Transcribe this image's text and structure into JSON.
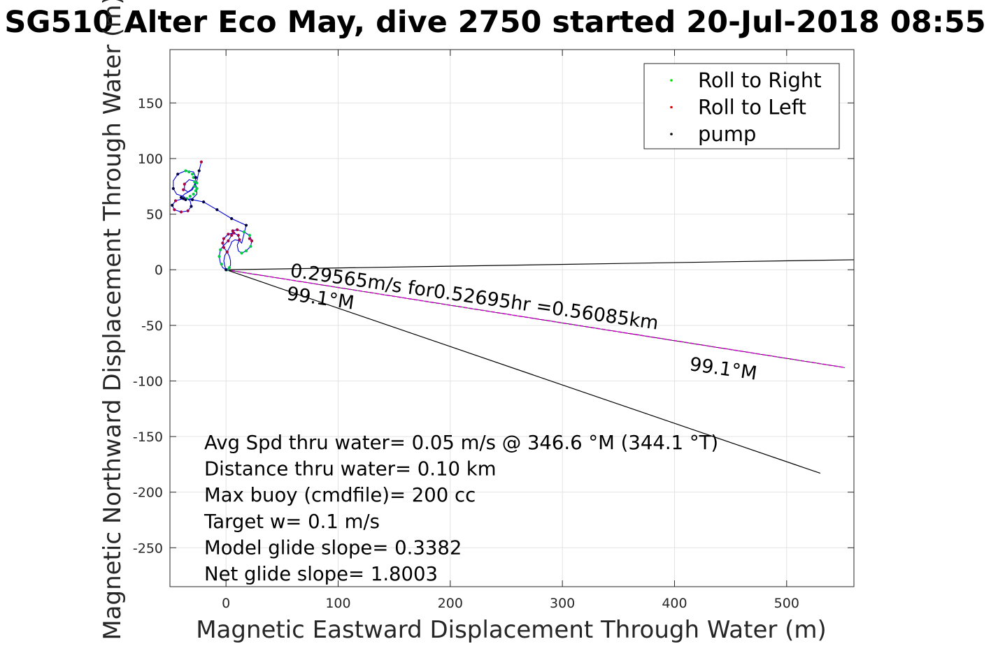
{
  "chart_data": {
    "type": "scatter",
    "title": "SG510 Alter Eco May, dive 2750 started 20-Jul-2018 08:55",
    "xlabel": "Magnetic Eastward Displacement Through Water (m)",
    "ylabel": "Magnetic Northward Displacement Through Water (m)",
    "xlim": [
      -50,
      560
    ],
    "ylim": [
      -285,
      198
    ],
    "x_ticks": [
      0,
      100,
      200,
      300,
      400,
      500
    ],
    "y_ticks": [
      -250,
      -200,
      -150,
      -100,
      -50,
      0,
      50,
      100,
      150
    ],
    "grid": true,
    "legend_position": "top-right",
    "legend": [
      {
        "label": "Roll to Right",
        "color": "#00e000"
      },
      {
        "label": "Roll to Left",
        "color": "#e00000"
      },
      {
        "label": "pump",
        "color": "#000000"
      }
    ],
    "colors": {
      "track": "#0000dd",
      "roll_right": "#00cc44",
      "roll_left": "#aa0044",
      "pump": "#000040",
      "vector_line": "#000000",
      "current_line": "#cc00cc"
    },
    "track": [
      [
        0,
        0
      ],
      [
        -3,
        2
      ],
      [
        -5,
        6
      ],
      [
        -6,
        12
      ],
      [
        -5,
        18
      ],
      [
        -2,
        22
      ],
      [
        2,
        26
      ],
      [
        5,
        31
      ],
      [
        6,
        35
      ],
      [
        10,
        36
      ],
      [
        16,
        34
      ],
      [
        21,
        31
      ],
      [
        23,
        26
      ],
      [
        22,
        21
      ],
      [
        18,
        17
      ],
      [
        14,
        15
      ],
      [
        11,
        17
      ],
      [
        10,
        22
      ],
      [
        12,
        27
      ],
      [
        11,
        31
      ],
      [
        7,
        33
      ],
      [
        2,
        32
      ],
      [
        -2,
        28
      ],
      [
        -3,
        24
      ],
      [
        -2,
        20
      ],
      [
        1,
        16
      ],
      [
        3,
        12
      ],
      [
        4,
        8
      ],
      [
        4,
        4
      ],
      [
        2,
        1
      ],
      [
        0,
        0
      ],
      [
        -1,
        3
      ],
      [
        -2,
        8
      ],
      [
        -1,
        13
      ],
      [
        2,
        18
      ],
      [
        4,
        22
      ],
      [
        5,
        25
      ],
      [
        8,
        27
      ],
      [
        12,
        26
      ],
      [
        14,
        24
      ],
      [
        18,
        40
      ],
      [
        5,
        46
      ],
      [
        -8,
        54
      ],
      [
        -20,
        61
      ],
      [
        -30,
        63
      ],
      [
        -38,
        64
      ],
      [
        -45,
        62
      ],
      [
        -48,
        58
      ],
      [
        -46,
        54
      ],
      [
        -40,
        52
      ],
      [
        -34,
        53
      ],
      [
        -31,
        57
      ],
      [
        -32,
        62
      ],
      [
        -38,
        66
      ],
      [
        -44,
        68
      ],
      [
        -47,
        73
      ],
      [
        -47,
        80
      ],
      [
        -43,
        86
      ],
      [
        -36,
        89
      ],
      [
        -29,
        88
      ],
      [
        -27,
        83
      ],
      [
        -28,
        77
      ],
      [
        -31,
        72
      ],
      [
        -34,
        70
      ],
      [
        -37,
        72
      ],
      [
        -37,
        77
      ],
      [
        -33,
        81
      ],
      [
        -29,
        80
      ],
      [
        -26,
        74
      ],
      [
        -26,
        68
      ],
      [
        -30,
        64
      ],
      [
        -36,
        63
      ],
      [
        -40,
        65
      ],
      [
        -37,
        68
      ],
      [
        -30,
        72
      ],
      [
        -26,
        80
      ],
      [
        -24,
        89
      ],
      [
        -22,
        97
      ]
    ],
    "series": [
      {
        "name": "Roll to Right",
        "points": [
          [
            -6,
            12
          ],
          [
            -5,
            18
          ],
          [
            -4,
            5
          ],
          [
            1,
            0
          ],
          [
            3,
            2
          ],
          [
            16,
            34
          ],
          [
            21,
            31
          ],
          [
            22,
            21
          ],
          [
            18,
            17
          ],
          [
            14,
            15
          ],
          [
            -36,
            89
          ],
          [
            -33,
            88
          ],
          [
            -30,
            86
          ],
          [
            -29,
            83
          ],
          [
            -28,
            79
          ],
          [
            -28,
            75
          ],
          [
            -27,
            71
          ],
          [
            -29,
            68
          ],
          [
            -32,
            66
          ],
          [
            -35,
            64
          ],
          [
            -26,
            78
          ],
          [
            -26,
            73
          ]
        ]
      },
      {
        "name": "Roll to Left",
        "points": [
          [
            2,
            26
          ],
          [
            5,
            31
          ],
          [
            6,
            35
          ],
          [
            10,
            36
          ],
          [
            12,
            27
          ],
          [
            11,
            31
          ],
          [
            7,
            33
          ],
          [
            2,
            32
          ],
          [
            -2,
            28
          ],
          [
            -3,
            24
          ],
          [
            -2,
            20
          ],
          [
            1,
            16
          ],
          [
            23,
            26
          ],
          [
            21,
            28
          ],
          [
            -46,
            54
          ],
          [
            -40,
            52
          ],
          [
            -34,
            53
          ],
          [
            -45,
            62
          ],
          [
            -22,
            97
          ],
          [
            -38,
            72
          ],
          [
            -37,
            77
          ]
        ]
      },
      {
        "name": "pump",
        "points": [
          [
            0,
            0
          ],
          [
            18,
            40
          ],
          [
            5,
            46
          ],
          [
            -8,
            54
          ],
          [
            -20,
            61
          ],
          [
            -30,
            63
          ],
          [
            -38,
            64
          ],
          [
            -47,
            73
          ],
          [
            -43,
            86
          ],
          [
            -27,
            83
          ],
          [
            -40,
            65
          ],
          [
            -24,
            89
          ],
          [
            -48,
            58
          ],
          [
            -31,
            57
          ],
          [
            -36,
            63
          ]
        ]
      }
    ],
    "lines": [
      {
        "from": [
          0,
          0
        ],
        "to": [
          560,
          9
        ],
        "style": "black"
      },
      {
        "from": [
          0,
          0
        ],
        "to": [
          530,
          -183
        ],
        "style": "black"
      },
      {
        "from": [
          0,
          0
        ],
        "to": [
          552,
          -88
        ],
        "style": "magenta-dashed"
      }
    ],
    "annotations": {
      "vector_label": "0.29565m/s for0.52695hr =0.56085km",
      "heading_label_near": "99.1°M",
      "heading_label_far": "99.1°M",
      "stats": [
        "Avg Spd thru water=  0.05 m/s @ 346.6 °M (344.1 °T)",
        "Distance thru water=  0.10 km",
        "Max buoy (cmdfile)= 200 cc",
        "Target w= 0.1 m/s",
        "Model glide slope= 0.3382",
        "Net glide slope= 1.8003"
      ]
    }
  }
}
